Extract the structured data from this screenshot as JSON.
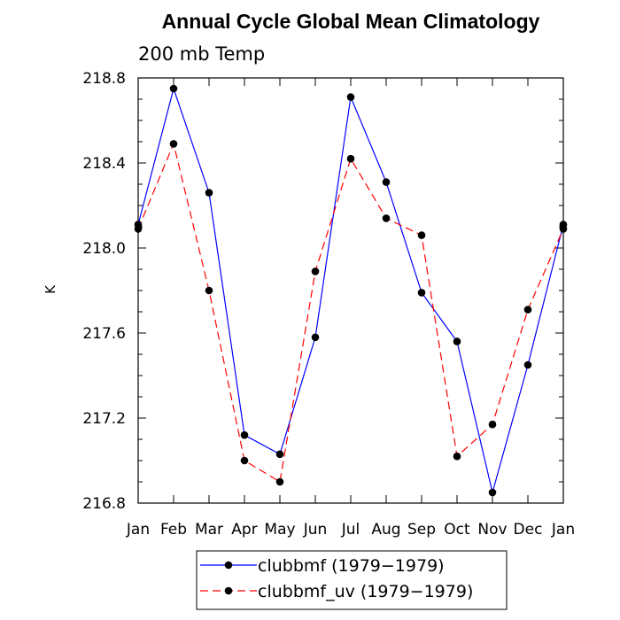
{
  "chart_data": {
    "type": "line",
    "title": "Annual Cycle Global Mean Climatology",
    "subtitle": "200 mb Temp",
    "xlabel": "",
    "ylabel": "K",
    "categories": [
      "Jan",
      "Feb",
      "Mar",
      "Apr",
      "May",
      "Jun",
      "Jul",
      "Aug",
      "Sep",
      "Oct",
      "Nov",
      "Dec",
      "Jan"
    ],
    "ylim": [
      216.8,
      218.8
    ],
    "yticks": [
      "216.8",
      "217.2",
      "217.6",
      "218.0",
      "218.4",
      "218.8"
    ],
    "grid": false,
    "legend_position": "bottom-center",
    "series": [
      {
        "name": "clubbmf (1979−1979)",
        "color": "#0000ff",
        "style": "solid",
        "values": [
          218.11,
          218.75,
          218.26,
          217.12,
          217.03,
          217.58,
          218.71,
          218.31,
          217.79,
          217.56,
          216.85,
          217.45,
          218.11
        ]
      },
      {
        "name": "clubbmf_uv (1979−1979)",
        "color": "#ff0000",
        "style": "dashed",
        "values": [
          218.09,
          218.49,
          217.8,
          217.0,
          216.9,
          217.89,
          218.42,
          218.14,
          218.06,
          217.02,
          217.17,
          217.71,
          218.09
        ]
      }
    ]
  }
}
